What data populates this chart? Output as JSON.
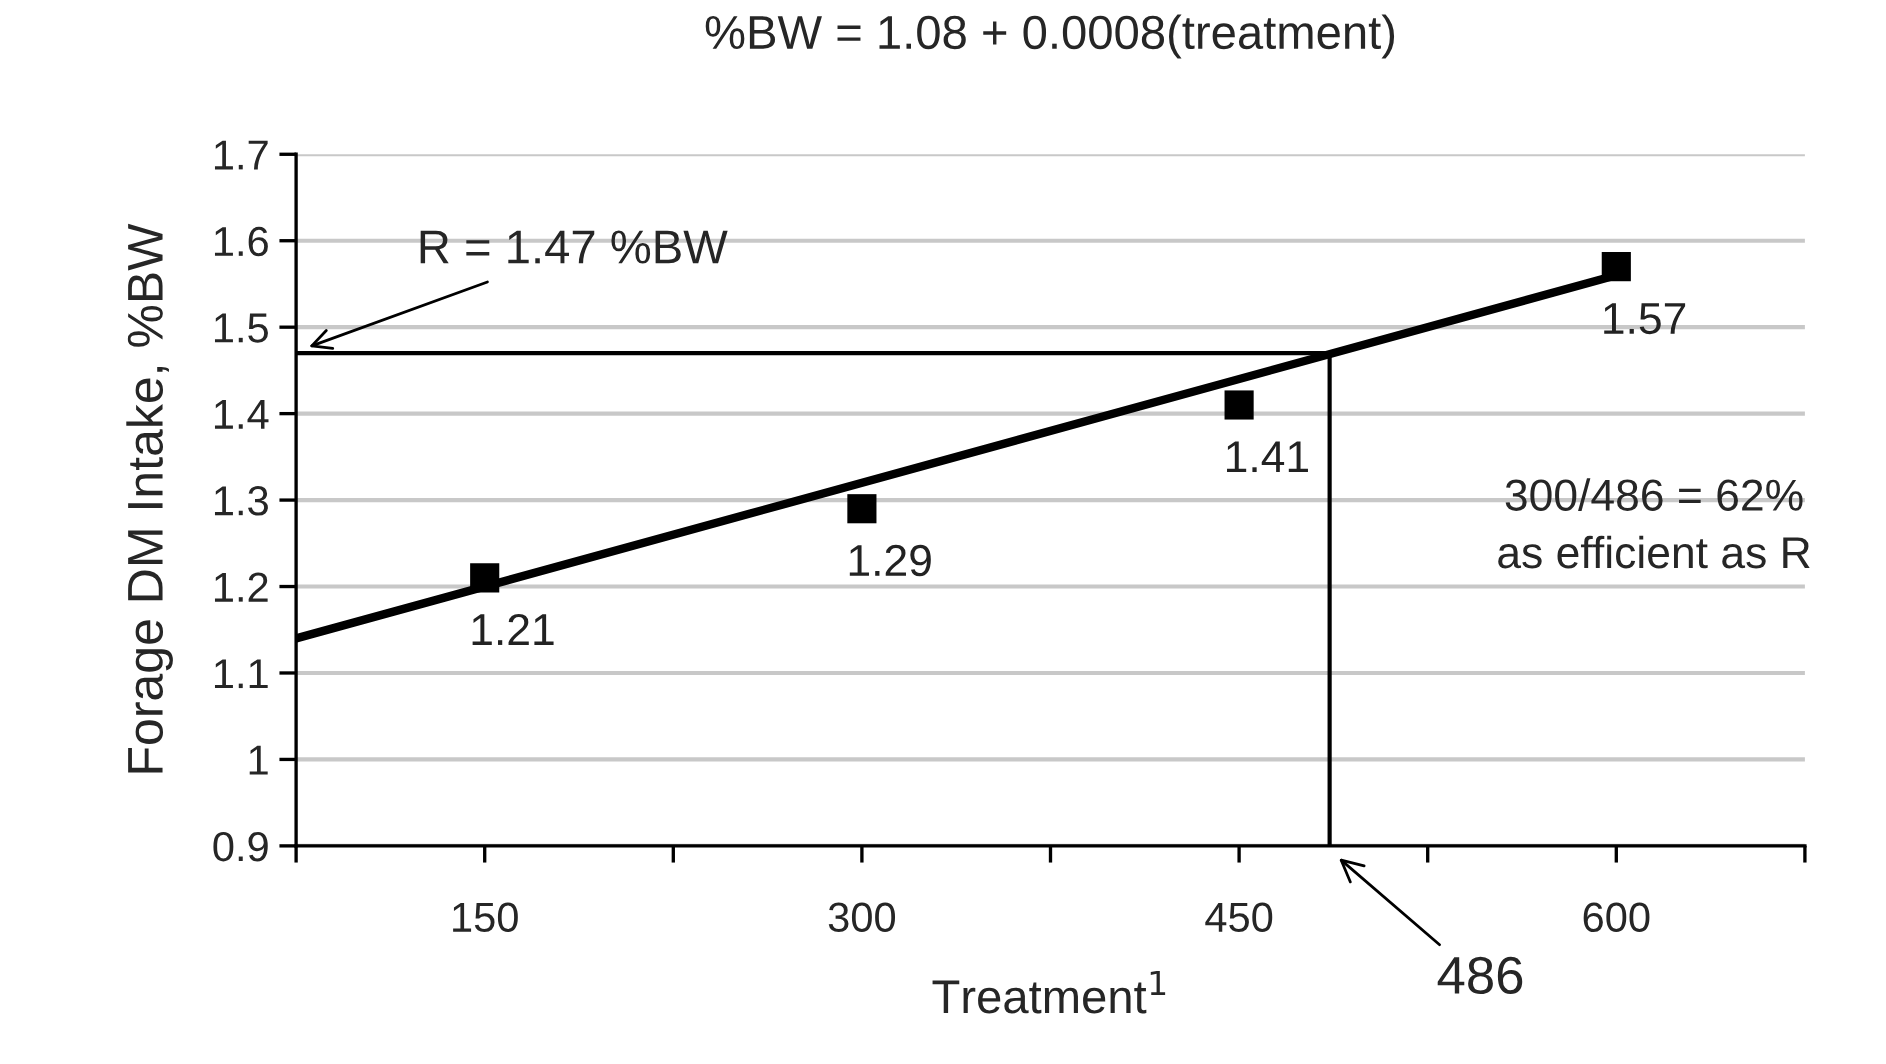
{
  "chart_data": {
    "type": "scatter",
    "title": "%BW = 1.08 + 0.0008(treatment)",
    "xlabel": "Treatment$^{1}$",
    "ylabel": "Forage DM Intake, %BW",
    "x": [
      150,
      300,
      450,
      600
    ],
    "series": [
      {
        "color": "#000000",
        "values": [
          1.21,
          1.29,
          1.41,
          1.57
        ],
        "marker": "square",
        "data_labels": true
      },
      {
        "type": "line",
        "color": "#000000",
        "x": [
          75,
          600
        ],
        "values": [
          1.14,
          1.56
        ],
        "marker": "none",
        "line_style": "solid"
      }
    ],
    "xlim": [
      75,
      675
    ],
    "xticks": [
      {
        "value": 75,
        "label": null
      },
      150,
      {
        "value": 225,
        "label": null
      },
      300,
      {
        "value": 375,
        "label": null
      },
      450,
      {
        "value": 525,
        "label": null
      },
      600,
      {
        "value": 675,
        "label": null
      }
    ],
    "ylim": [
      0.9,
      1.7
    ],
    "yticks": [
      {
        "value": 0.9,
        "label": "0.9"
      },
      1,
      1.1,
      1.2,
      1.3,
      1.4,
      1.5,
      1.6,
      1.7
    ],
    "ref_lines": [
      {
        "axis": "y",
        "value": 1.47,
        "label": "R = 1.47 %BW",
        "color": "#000000"
      },
      {
        "axis": "x",
        "value": 486,
        "label": "486",
        "color": "#000000"
      }
    ],
    "annotations": [
      "300/486 = 62%\nas efficient as R"
    ],
    "grid": "y"
  }
}
